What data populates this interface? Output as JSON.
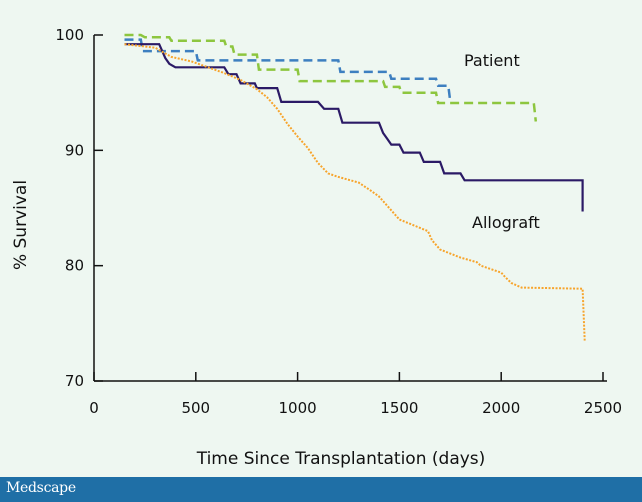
{
  "chart_data": {
    "type": "line",
    "xlabel": "Time Since Transplantation (days)",
    "ylabel": "% Survival",
    "xlim": [
      0,
      2500
    ],
    "ylim": [
      70,
      100
    ],
    "xticks": [
      0,
      500,
      1000,
      1500,
      2000,
      2500
    ],
    "yticks": [
      70,
      80,
      90,
      100
    ],
    "grid": false,
    "annotations": [
      "Patient",
      "Allograft"
    ],
    "series": [
      {
        "style": "dashed",
        "color": "#8dc63f",
        "x": [
          150,
          230,
          250,
          370,
          380,
          640,
          650,
          680,
          690,
          800,
          810,
          1000,
          1010,
          1420,
          1430,
          1500,
          1510,
          1680,
          1690,
          2160,
          2170
        ],
        "y": [
          100,
          100,
          99.8,
          99.8,
          99.5,
          99.5,
          99,
          99,
          98.3,
          98.3,
          97,
          97,
          96,
          96,
          95.5,
          95.5,
          95,
          95,
          94.1,
          94.1,
          92.5
        ]
      },
      {
        "style": "dashed",
        "color": "#3d7fc0",
        "x": [
          150,
          230,
          240,
          500,
          510,
          1200,
          1210,
          1450,
          1460,
          1680,
          1690,
          1740,
          1750
        ],
        "y": [
          99.6,
          99.6,
          98.6,
          98.6,
          97.8,
          97.8,
          96.8,
          96.8,
          96.2,
          96.2,
          95.6,
          95.6,
          94.2
        ]
      },
      {
        "style": "solid",
        "color": "#2b1a66",
        "x": [
          150,
          320,
          350,
          370,
          400,
          640,
          660,
          700,
          720,
          790,
          800,
          900,
          920,
          1100,
          1130,
          1200,
          1220,
          1400,
          1420,
          1440,
          1460,
          1500,
          1520,
          1600,
          1620,
          1700,
          1720,
          1800,
          1820,
          2400,
          2400
        ],
        "y": [
          99.2,
          99.2,
          98,
          97.5,
          97.2,
          97.2,
          96.6,
          96.6,
          95.8,
          95.8,
          95.4,
          95.4,
          94.2,
          94.2,
          93.6,
          93.6,
          92.4,
          92.4,
          91.5,
          91,
          90.5,
          90.5,
          89.8,
          89.8,
          89,
          89,
          88,
          88,
          87.4,
          87.4,
          84.7
        ]
      },
      {
        "style": "dotted",
        "color": "#f7a42b",
        "x": [
          150,
          300,
          380,
          480,
          560,
          640,
          720,
          800,
          850,
          900,
          950,
          1000,
          1050,
          1100,
          1150,
          1200,
          1300,
          1360,
          1400,
          1450,
          1500,
          1640,
          1660,
          1700,
          1800,
          1880,
          1900,
          2000,
          2020,
          2050,
          2100,
          2400,
          2410
        ],
        "y": [
          99.2,
          98.9,
          98.1,
          97.7,
          97.2,
          96.7,
          96.1,
          95.3,
          94.6,
          93.6,
          92.3,
          91.2,
          90.2,
          88.9,
          88,
          87.7,
          87.2,
          86.5,
          86,
          85,
          84,
          83,
          82.2,
          81.4,
          80.7,
          80.3,
          80,
          79.4,
          79,
          78.5,
          78.1,
          78,
          73.5
        ]
      }
    ]
  },
  "footer": {
    "brand": "Medscape",
    "bar_color": "#1f6fa6"
  }
}
